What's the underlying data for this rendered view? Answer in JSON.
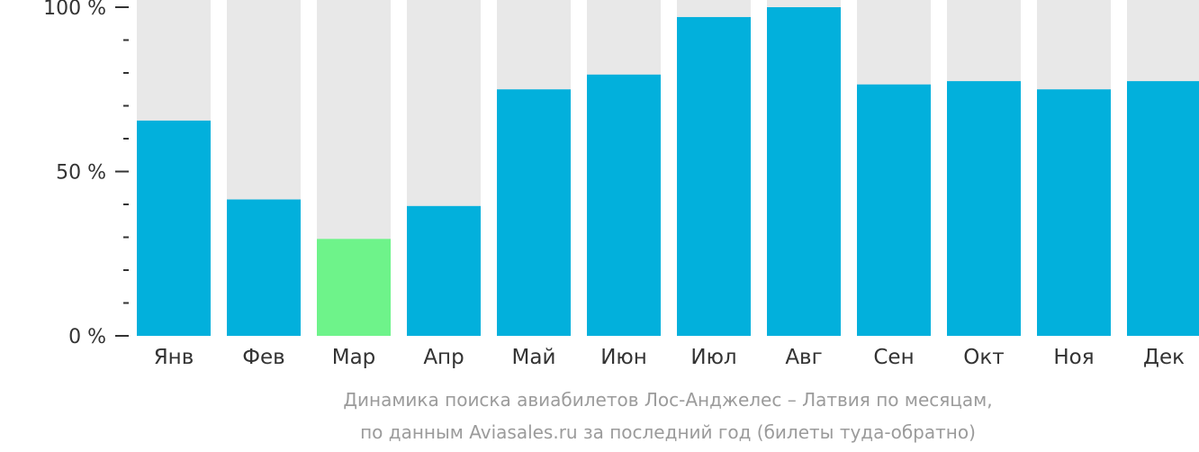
{
  "chart_data": {
    "type": "bar",
    "categories": [
      "Янв",
      "Фев",
      "Мар",
      "Апр",
      "Май",
      "Июн",
      "Июл",
      "Авг",
      "Сен",
      "Окт",
      "Ноя",
      "Дек"
    ],
    "values": [
      65.5,
      41.5,
      29.5,
      39.5,
      75,
      79.5,
      97,
      100,
      76.5,
      77.5,
      75,
      77.5
    ],
    "highlight_index": 2,
    "ylim": [
      0,
      100
    ],
    "yticks": [
      {
        "value": 100,
        "label": "100 %"
      },
      {
        "value": 50,
        "label": "50 %"
      },
      {
        "value": 0,
        "label": "0 %"
      }
    ],
    "minor_ticks": [
      90,
      80,
      70,
      60,
      40,
      30,
      20,
      10
    ],
    "colors": {
      "bar": "#02b0dc",
      "highlight": "#6ef38a",
      "track": "#e8e8e8",
      "axis": "#333333",
      "tick_text": "#333333",
      "caption": "#9b9b9b"
    }
  },
  "caption": {
    "line1": "Динамика поиска авиабилетов Лос-Анджелес – Латвия по месяцам,",
    "line2": "по данным Aviasales.ru за последний год (билеты туда-обратно)"
  }
}
